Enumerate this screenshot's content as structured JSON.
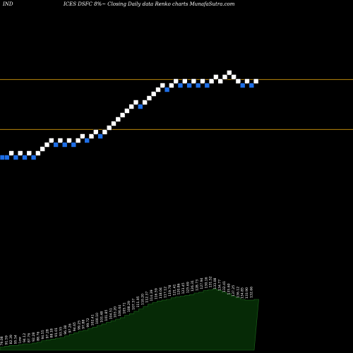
{
  "header": {
    "left": "IND",
    "right": "ICES DSFC 8%~ Closing Daily data Renko charts MunafaSutra.com"
  },
  "colors": {
    "background": "#000000",
    "up_brick": "#ffffff",
    "down_brick": "#1e6ee6",
    "reference_line": "#b8860b",
    "volume_fill": "#062a06",
    "volume_stroke": "#1c6a1c"
  },
  "chart_data": [
    {
      "type": "renko",
      "grid": false,
      "bricks": [
        {
          "level": 0,
          "dir": "down"
        },
        {
          "level": 0,
          "dir": "down"
        },
        {
          "level": 1,
          "dir": "up"
        },
        {
          "level": 0,
          "dir": "down"
        },
        {
          "level": 1,
          "dir": "up"
        },
        {
          "level": 0,
          "dir": "down"
        },
        {
          "level": 1,
          "dir": "up"
        },
        {
          "level": 0,
          "dir": "down"
        },
        {
          "level": 1,
          "dir": "up"
        },
        {
          "level": 2,
          "dir": "up"
        },
        {
          "level": 3,
          "dir": "up"
        },
        {
          "level": 4,
          "dir": "up"
        },
        {
          "level": 3,
          "dir": "down"
        },
        {
          "level": 4,
          "dir": "up"
        },
        {
          "level": 3,
          "dir": "down"
        },
        {
          "level": 4,
          "dir": "up"
        },
        {
          "level": 3,
          "dir": "down"
        },
        {
          "level": 4,
          "dir": "up"
        },
        {
          "level": 5,
          "dir": "up"
        },
        {
          "level": 4,
          "dir": "down"
        },
        {
          "level": 5,
          "dir": "up"
        },
        {
          "level": 6,
          "dir": "up"
        },
        {
          "level": 5,
          "dir": "down"
        },
        {
          "level": 6,
          "dir": "up"
        },
        {
          "level": 7,
          "dir": "up"
        },
        {
          "level": 8,
          "dir": "up"
        },
        {
          "level": 9,
          "dir": "up"
        },
        {
          "level": 10,
          "dir": "up"
        },
        {
          "level": 11,
          "dir": "up"
        },
        {
          "level": 12,
          "dir": "up"
        },
        {
          "level": 13,
          "dir": "up"
        },
        {
          "level": 12,
          "dir": "down"
        },
        {
          "level": 13,
          "dir": "up"
        },
        {
          "level": 14,
          "dir": "up"
        },
        {
          "level": 15,
          "dir": "up"
        },
        {
          "level": 16,
          "dir": "up"
        },
        {
          "level": 17,
          "dir": "up"
        },
        {
          "level": 16,
          "dir": "down"
        },
        {
          "level": 17,
          "dir": "up"
        },
        {
          "level": 18,
          "dir": "up"
        },
        {
          "level": 17,
          "dir": "down"
        },
        {
          "level": 18,
          "dir": "up"
        },
        {
          "level": 17,
          "dir": "down"
        },
        {
          "level": 18,
          "dir": "up"
        },
        {
          "level": 17,
          "dir": "down"
        },
        {
          "level": 18,
          "dir": "up"
        },
        {
          "level": 17,
          "dir": "down"
        },
        {
          "level": 18,
          "dir": "up"
        },
        {
          "level": 19,
          "dir": "up"
        },
        {
          "level": 18,
          "dir": "up"
        },
        {
          "level": 19,
          "dir": "up"
        },
        {
          "level": 20,
          "dir": "up"
        },
        {
          "level": 19,
          "dir": "up"
        },
        {
          "level": 18,
          "dir": "up"
        },
        {
          "level": 17,
          "dir": "down"
        },
        {
          "level": 18,
          "dir": "up"
        },
        {
          "level": 17,
          "dir": "down"
        },
        {
          "level": 18,
          "dir": "up"
        }
      ],
      "reference_levels": [
        18.4,
        6.6
      ]
    },
    {
      "type": "area",
      "title": "",
      "values": [
        4,
        5,
        6,
        6,
        7,
        8,
        8,
        9,
        10,
        12,
        13,
        14,
        15,
        16,
        18,
        20,
        22,
        24,
        25,
        27,
        29,
        31,
        33,
        35,
        37,
        39,
        41,
        44,
        46,
        49,
        52,
        55,
        58,
        60,
        62,
        63,
        64,
        66,
        67,
        68,
        69,
        70,
        72,
        73,
        75,
        76,
        77,
        75,
        73,
        71,
        68,
        66,
        64,
        63,
        63,
        64
      ],
      "labels": [
        "79.08",
        "91.59",
        "82.39",
        "95.54",
        "Low",
        "94.12",
        "87.76",
        "92.28",
        "88.76",
        "94.55",
        "97.28",
        "88.18",
        "91.01",
        "93.55",
        "96.38",
        "97.26",
        "94.65",
        "99.25",
        "97.88",
        "99.72",
        "102.41",
        "100.10",
        "103.48",
        "101.85",
        "104.51",
        "103.20",
        "106.64",
        "105.71",
        "108.29",
        "107.57",
        "111.95",
        "110.20",
        "112.37",
        "114.39",
        "116.59",
        "118.04",
        "117.12",
        "119.78",
        "121.41",
        "120.86",
        "123.45",
        "125.69",
        "126.31",
        "128.73",
        "127.94",
        "130.16",
        "131.52",
        "133.08",
        "134.77",
        "132.41",
        "135.60",
        "137.25",
        "136.12",
        "134.85",
        "133.90",
        "132.66"
      ]
    }
  ]
}
